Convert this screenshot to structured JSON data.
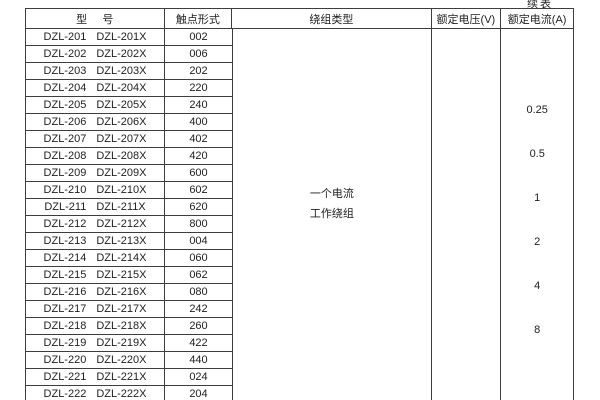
{
  "continued_label": "续表",
  "header": {
    "model": "型     号",
    "contact_form": "触点形式",
    "winding_type": "绕组类型",
    "rated_voltage": "额定电压(V)",
    "rated_current": "额定电流(A)"
  },
  "winding": {
    "line1": "一个电流",
    "line2": "工作绕组"
  },
  "rated_current_values": [
    "0.25",
    "0.5",
    "1",
    "2",
    "4",
    "8"
  ],
  "rows": [
    {
      "model_a": "DZL-201",
      "model_b": "DZL-201X",
      "contact": "002"
    },
    {
      "model_a": "DZL-202",
      "model_b": "DZL-202X",
      "contact": "006"
    },
    {
      "model_a": "DZL-203",
      "model_b": "DZL-203X",
      "contact": "202"
    },
    {
      "model_a": "DZL-204",
      "model_b": "DZL-204X",
      "contact": "220"
    },
    {
      "model_a": "DZL-205",
      "model_b": "DZL-205X",
      "contact": "240"
    },
    {
      "model_a": "DZL-206",
      "model_b": "DZL-206X",
      "contact": "400"
    },
    {
      "model_a": "DZL-207",
      "model_b": "DZL-207X",
      "contact": "402"
    },
    {
      "model_a": "DZL-208",
      "model_b": "DZL-208X",
      "contact": "420"
    },
    {
      "model_a": "DZL-209",
      "model_b": "DZL-209X",
      "contact": "600"
    },
    {
      "model_a": "DZL-210",
      "model_b": "DZL-210X",
      "contact": "602"
    },
    {
      "model_a": "DZL-211",
      "model_b": "DZL-211X",
      "contact": "620"
    },
    {
      "model_a": "DZL-212",
      "model_b": "DZL-212X",
      "contact": "800"
    },
    {
      "model_a": "DZL-213",
      "model_b": "DZL-213X",
      "contact": "004"
    },
    {
      "model_a": "DZL-214",
      "model_b": "DZL-214X",
      "contact": "060"
    },
    {
      "model_a": "DZL-215",
      "model_b": "DZL-215X",
      "contact": "062"
    },
    {
      "model_a": "DZL-216",
      "model_b": "DZL-216X",
      "contact": "080"
    },
    {
      "model_a": "DZL-217",
      "model_b": "DZL-217X",
      "contact": "242"
    },
    {
      "model_a": "DZL-218",
      "model_b": "DZL-218X",
      "contact": "260"
    },
    {
      "model_a": "DZL-219",
      "model_b": "DZL-219X",
      "contact": "422"
    },
    {
      "model_a": "DZL-220",
      "model_b": "DZL-220X",
      "contact": "440"
    },
    {
      "model_a": "DZL-221",
      "model_b": "DZL-221X",
      "contact": "024"
    },
    {
      "model_a": "DZL-222",
      "model_b": "DZL-222X",
      "contact": "204"
    }
  ],
  "colors": {
    "border": "#3d3d3d",
    "text": "#1e1e1e",
    "background": "#ffffff"
  }
}
